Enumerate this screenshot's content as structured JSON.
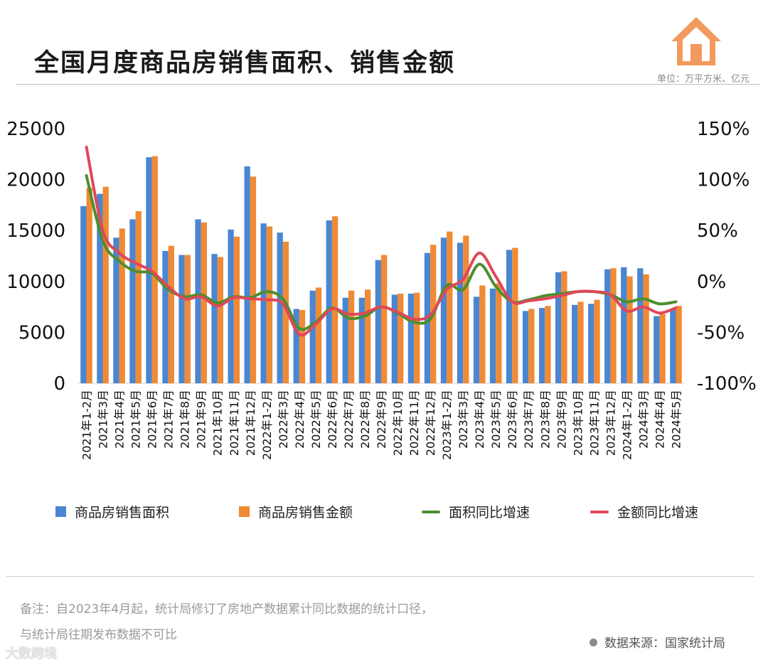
{
  "title": "全国月度商品房销售面积、销售金额",
  "unit_label": "单位：万平方米、亿元",
  "legend": {
    "area": "商品房销售面积",
    "amount": "商品房销售金额",
    "area_yoy": "面积同比增速",
    "amount_yoy": "金额同比增速"
  },
  "notes": {
    "line1": "备注：自2023年4月起，统计局修订了房地产数据累计同比数据的统计口径，",
    "line2": "与统计局往期发布数据不可比"
  },
  "source": "数据来源：国家统计局",
  "brand": "大数跨境",
  "colors": {
    "area": "#4a86d1",
    "amount": "#f08a35",
    "area_yoy": "#4c8f2e",
    "amount_yoy": "#e04858",
    "logo": "#f29a5e"
  },
  "chart_data": {
    "type": "bar",
    "categories": [
      "2021年1-2月",
      "2021年3月",
      "2021年4月",
      "2021年5月",
      "2021年6月",
      "2021年7月",
      "2021年8月",
      "2021年9月",
      "2021年10月",
      "2021年11月",
      "2021年12月",
      "2022年1-2月",
      "2022年3月",
      "2022年4月",
      "2022年5月",
      "2022年6月",
      "2022年7月",
      "2022年8月",
      "2022年9月",
      "2022年10月",
      "2022年11月",
      "2022年12月",
      "2023年1-2月",
      "2023年3月",
      "2023年4月",
      "2023年5月",
      "2023年6月",
      "2023年7月",
      "2023年8月",
      "2023年9月",
      "2023年10月",
      "2023年11月",
      "2023年12月",
      "2024年1-2月",
      "2024年3月",
      "2024年4月",
      "2024年5月"
    ],
    "series": [
      {
        "name": "商品房销售面积",
        "type": "bar",
        "axis": "left",
        "values": [
          17400,
          18600,
          14300,
          16100,
          22200,
          13000,
          12600,
          16100,
          12700,
          15100,
          21300,
          15700,
          14800,
          7300,
          9100,
          16000,
          8400,
          8400,
          12100,
          8700,
          8800,
          12800,
          14300,
          13800,
          8500,
          9300,
          13100,
          7100,
          7400,
          10900,
          7700,
          7800,
          11200,
          11400,
          11300,
          6600,
          7300
        ]
      },
      {
        "name": "商品房销售金额",
        "type": "bar",
        "axis": "left",
        "values": [
          19200,
          19300,
          15200,
          16900,
          22300,
          13500,
          12600,
          15800,
          12400,
          14400,
          20300,
          15400,
          13900,
          7200,
          9400,
          16400,
          9100,
          9200,
          12600,
          8800,
          8900,
          13600,
          14900,
          14500,
          9600,
          9800,
          13300,
          7300,
          7600,
          11000,
          8000,
          8200,
          11300,
          10500,
          10700,
          6800,
          7600
        ]
      },
      {
        "name": "面积同比增速",
        "type": "line",
        "axis": "right",
        "values": [
          104,
          40,
          20,
          10,
          8,
          -8,
          -15,
          -13,
          -21,
          -15,
          -16,
          -10,
          -17,
          -46,
          -40,
          -26,
          -36,
          -34,
          -25,
          -31,
          -40,
          -37,
          -4,
          -8,
          17,
          -5,
          -20,
          -18,
          -14,
          -12,
          -10,
          -10,
          -13,
          -20,
          -17,
          -22,
          -20
        ]
      },
      {
        "name": "金额同比增速",
        "type": "line",
        "axis": "right",
        "values": [
          132,
          50,
          28,
          18,
          10,
          -5,
          -17,
          -15,
          -24,
          -16,
          -17,
          -18,
          -22,
          -52,
          -42,
          -27,
          -32,
          -31,
          -25,
          -30,
          -37,
          -33,
          -8,
          2,
          28,
          5,
          -20,
          -19,
          -17,
          -14,
          -10,
          -10,
          -13,
          -29,
          -25,
          -31,
          -26
        ]
      }
    ],
    "left_axis": {
      "min": 0,
      "max": 25000,
      "ticks": [
        "0",
        "5000",
        "10000",
        "15000",
        "20000",
        "25000"
      ]
    },
    "right_axis": {
      "min": -100,
      "max": 150,
      "ticks": [
        "-100%",
        "-50%",
        "0%",
        "50%",
        "100%",
        "150%"
      ]
    }
  }
}
